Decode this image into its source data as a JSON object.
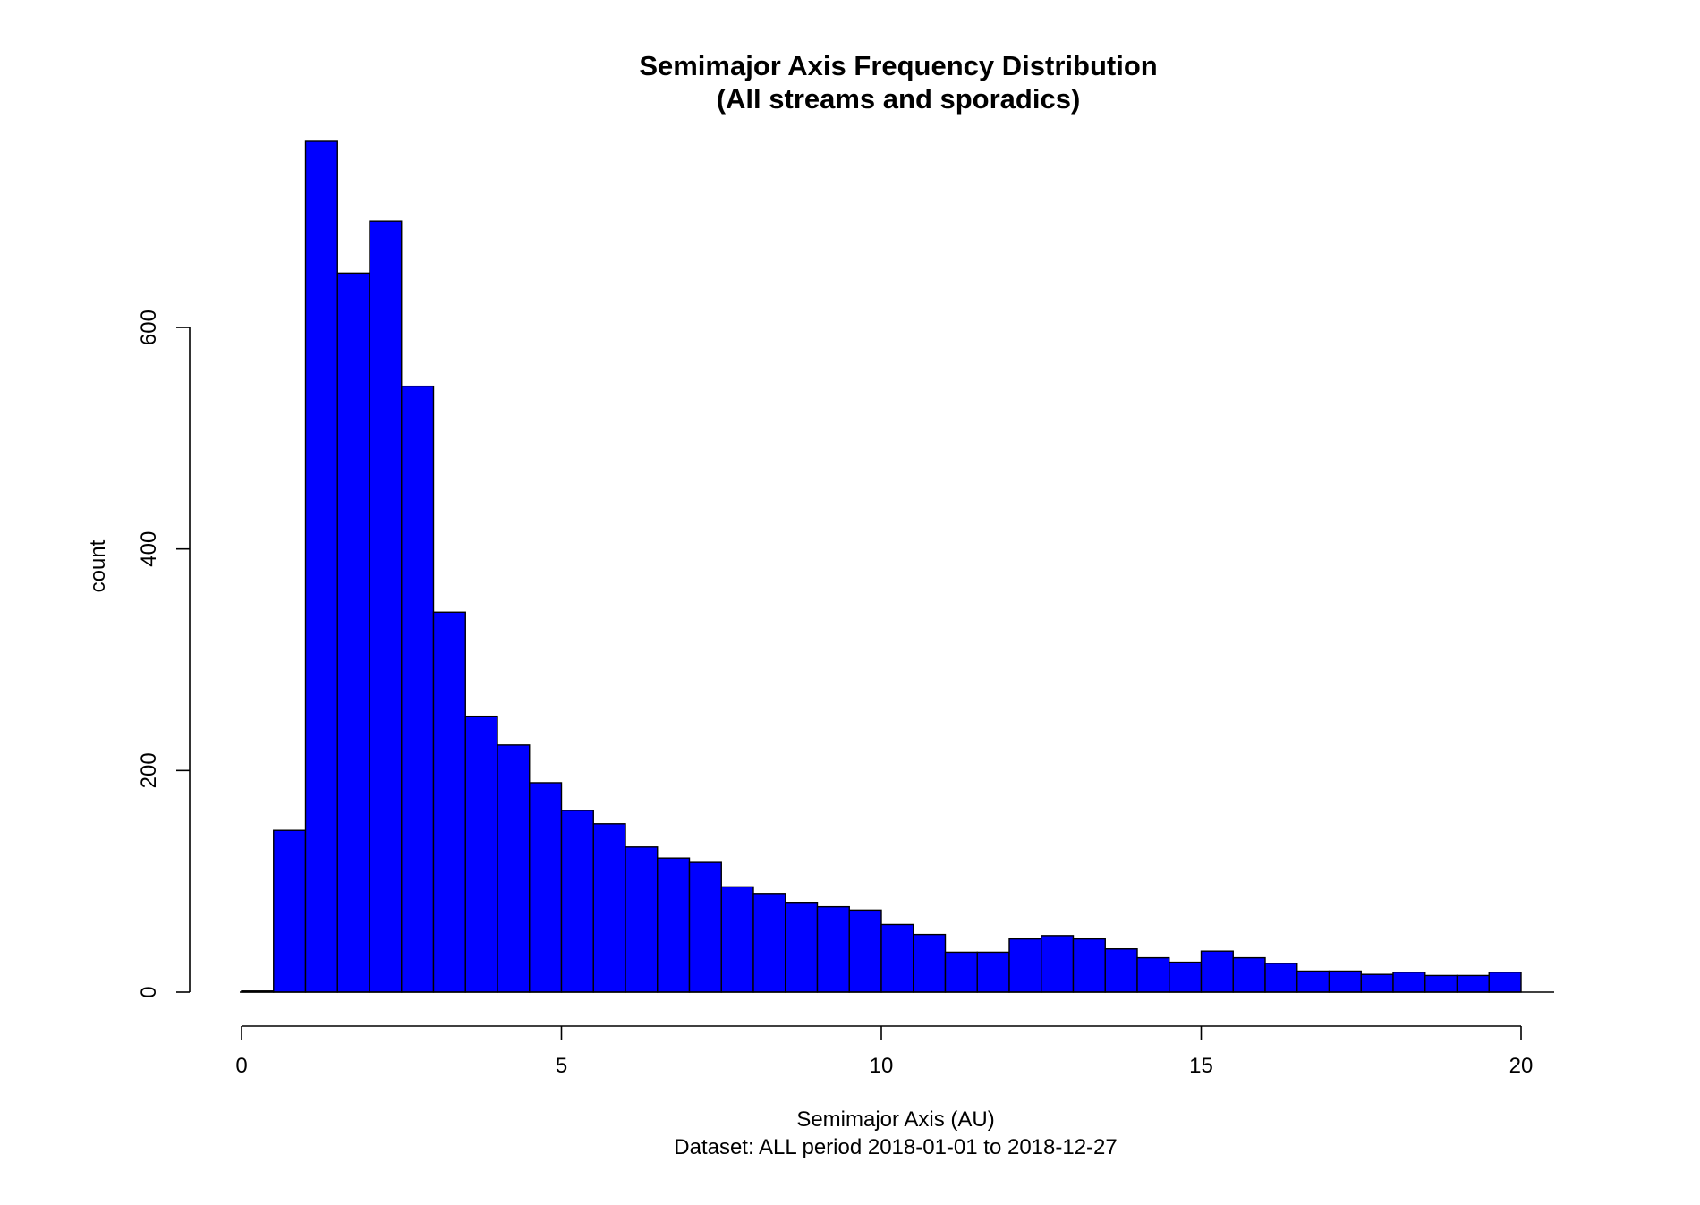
{
  "chart_data": {
    "type": "bar",
    "title": "Semimajor Axis Frequency Distribution",
    "subtitle": "(All streams and sporadics)",
    "xlabel": "Semimajor Axis (AU)",
    "caption": "Dataset: ALL period 2018-01-01 to 2018-12-27",
    "ylabel": "count",
    "bin_width": 0.5,
    "bin_starts": [
      0,
      0.5,
      1,
      1.5,
      2,
      2.5,
      3,
      3.5,
      4,
      4.5,
      5,
      5.5,
      6,
      6.5,
      7,
      7.5,
      8,
      8.5,
      9,
      9.5,
      10,
      10.5,
      11,
      11.5,
      12,
      12.5,
      13,
      13.5,
      14,
      14.5,
      15,
      15.5,
      16,
      16.5,
      17,
      17.5,
      18,
      18.5,
      19,
      19.5
    ],
    "values": [
      1,
      146,
      768,
      649,
      696,
      547,
      343,
      249,
      223,
      189,
      164,
      152,
      131,
      121,
      117,
      95,
      89,
      81,
      77,
      74,
      61,
      52,
      36,
      36,
      48,
      51,
      48,
      39,
      31,
      27,
      37,
      31,
      26,
      19,
      19,
      16,
      18,
      15,
      15,
      18
    ],
    "xlim": [
      0,
      20
    ],
    "ylim": [
      0,
      768
    ],
    "x_ticks": [
      0,
      5,
      10,
      15,
      20
    ],
    "y_ticks": [
      0,
      200,
      400,
      600
    ],
    "grid": false,
    "bar_color": "#0000ff",
    "border_color": "#000000"
  }
}
